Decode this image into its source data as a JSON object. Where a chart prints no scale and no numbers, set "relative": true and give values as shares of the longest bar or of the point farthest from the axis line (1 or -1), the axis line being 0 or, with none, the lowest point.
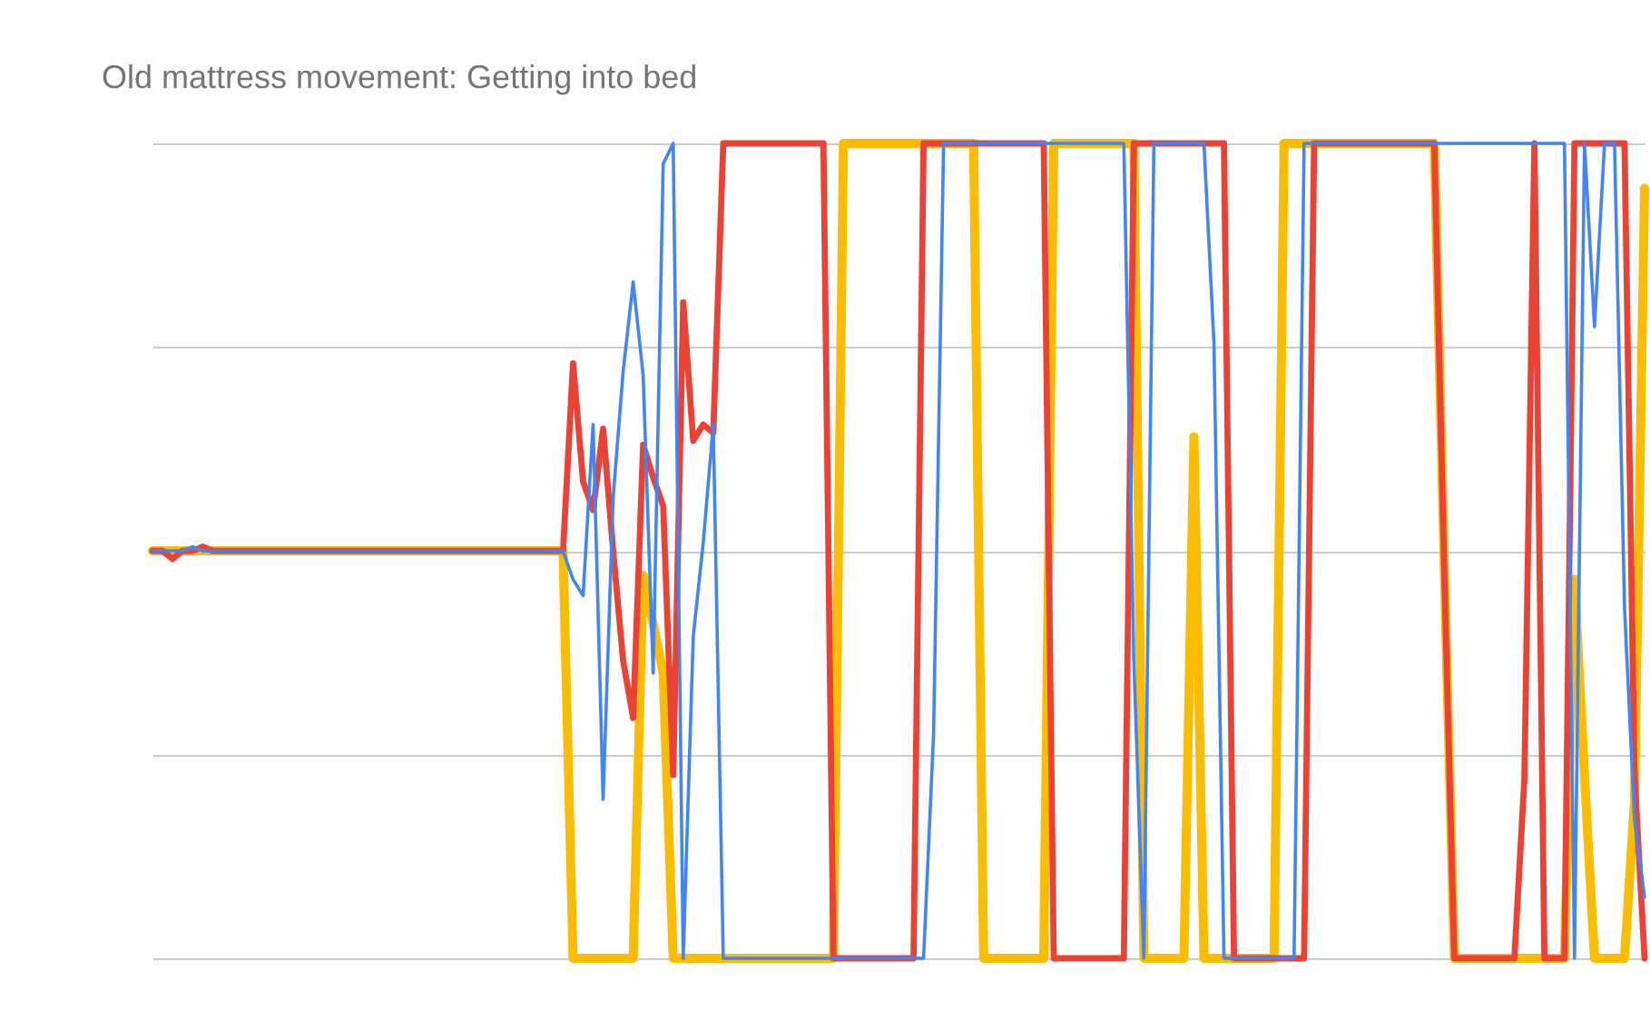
{
  "chart_data": {
    "type": "line",
    "title": "Old mattress movement: Getting into bed",
    "relative": true,
    "grid": "y",
    "marker": "none",
    "line_style": "solid",
    "categories": [
      null,
      null,
      null,
      null,
      null,
      null,
      null,
      null,
      null,
      null,
      null,
      null,
      null,
      null,
      null,
      null,
      null,
      null,
      null,
      null,
      null,
      null,
      null,
      null,
      null,
      null,
      null,
      null,
      null,
      null,
      null,
      null,
      null,
      null,
      null,
      null,
      null,
      null,
      null,
      null,
      null,
      null,
      null,
      null,
      null,
      null,
      null,
      null,
      null,
      null,
      null,
      null,
      null,
      null,
      null,
      null,
      null,
      null,
      null,
      null,
      null,
      null,
      null,
      null,
      null,
      null,
      null,
      null,
      null,
      null,
      null,
      null,
      null,
      null,
      null,
      null,
      null,
      null,
      null,
      null,
      null,
      null,
      null,
      null,
      null,
      null,
      null,
      null,
      null,
      null,
      null,
      null,
      null,
      null,
      null,
      null,
      null,
      null,
      null,
      null,
      null,
      null,
      null,
      null,
      null,
      null,
      null,
      null,
      null,
      null,
      null,
      null,
      null,
      null,
      null,
      null,
      null,
      null,
      null,
      null,
      null,
      null,
      null,
      null,
      null,
      null,
      null,
      null,
      null,
      null,
      null,
      null,
      null,
      null,
      null,
      null,
      null,
      null,
      null,
      null,
      null,
      null,
      null,
      null,
      null,
      null,
      null,
      null,
      null,
      null
    ],
    "series": [
      {
        "color": "#4285f4",
        "values": [
          0,
          0,
          0,
          0,
          0.01,
          0,
          0,
          0,
          0,
          0,
          0,
          0,
          0,
          0,
          0,
          0,
          0,
          0,
          0,
          0,
          0,
          0,
          0,
          0,
          0,
          0,
          0,
          0,
          0,
          0,
          0,
          0,
          0,
          0,
          0,
          0,
          0,
          0,
          0,
          0,
          0,
          0,
          -0.07,
          -0.11,
          0.31,
          -0.61,
          0.13,
          0.44,
          0.66,
          0.43,
          -0.3,
          0.95,
          1,
          -1,
          -0.21,
          0.02,
          0.31,
          -1,
          -1,
          -1,
          -1,
          -1,
          -1,
          -1,
          -1,
          -1,
          -1,
          -1,
          -1,
          -1,
          -1,
          -1,
          -1,
          -1,
          -1,
          -1,
          -1,
          -1,
          -0.45,
          1,
          1,
          1,
          1,
          1,
          1,
          1,
          1,
          1,
          1,
          1,
          1,
          1,
          1,
          1,
          1,
          1,
          1,
          1,
          -0.27,
          -1,
          1,
          1,
          1,
          1,
          1,
          1,
          0.51,
          -1,
          -1,
          -1,
          -1,
          -1,
          -1,
          -1,
          -1,
          1,
          1,
          1,
          1,
          1,
          1,
          1,
          1,
          1,
          1,
          1,
          1,
          1,
          1,
          1,
          1,
          1,
          1,
          1,
          1,
          1,
          1,
          1,
          1,
          1,
          1,
          1,
          -1,
          1,
          0.55,
          1,
          1,
          -0.14,
          -0.66,
          -0.85
        ]
      },
      {
        "color": "#ea4335",
        "values": [
          0,
          0,
          -0.02,
          0,
          0,
          0.01,
          0,
          0,
          0,
          0,
          0,
          0,
          0,
          0,
          0,
          0,
          0,
          0,
          0,
          0,
          0,
          0,
          0,
          0,
          0,
          0,
          0,
          0,
          0,
          0,
          0,
          0,
          0,
          0,
          0,
          0,
          0,
          0,
          0,
          0,
          0,
          0,
          0.46,
          0.17,
          0.1,
          0.3,
          0,
          -0.27,
          -0.41,
          0.26,
          0.18,
          0.11,
          -0.55,
          0.61,
          0.27,
          0.31,
          0.29,
          1,
          1,
          1,
          1,
          1,
          1,
          1,
          1,
          1,
          1,
          1,
          -1,
          -1,
          -1,
          -1,
          -1,
          -1,
          -1,
          -1,
          -1,
          1,
          1,
          1,
          1,
          1,
          1,
          1,
          1,
          1,
          1,
          1,
          1,
          1,
          -1,
          -1,
          -1,
          -1,
          -1,
          -1,
          -1,
          -1,
          1,
          1,
          1,
          1,
          1,
          1,
          1,
          1,
          1,
          1,
          -1,
          -1,
          -1,
          -1,
          -1,
          -1,
          -1,
          -1,
          1,
          1,
          1,
          1,
          1,
          1,
          1,
          1,
          1,
          1,
          1,
          1,
          1,
          -0.05,
          -1,
          -1,
          -1,
          -1,
          -1,
          -1,
          -1,
          -0.56,
          1,
          -1,
          -1,
          -1,
          1,
          1,
          1,
          1,
          1,
          1,
          -0.55,
          -1
        ]
      },
      {
        "color": "#fbbc04",
        "values": [
          0,
          0,
          0,
          0,
          0,
          0,
          0,
          0,
          0,
          0,
          0,
          0,
          0,
          0,
          0,
          0,
          0,
          0,
          0,
          0,
          0,
          0,
          0,
          0,
          0,
          0,
          0,
          0,
          0,
          0,
          0,
          0,
          0,
          0,
          0,
          0,
          0,
          0,
          0,
          0,
          0,
          0,
          -1,
          -1,
          -1,
          -1,
          -1,
          -1,
          -1,
          -0.06,
          -0.18,
          -0.3,
          -1,
          -1,
          -1,
          -1,
          -1,
          -1,
          -1,
          -1,
          -1,
          -1,
          -1,
          -1,
          -1,
          -1,
          -1,
          -1,
          -1,
          1,
          1,
          1,
          1,
          1,
          1,
          1,
          1,
          1,
          1,
          1,
          1,
          1,
          1,
          -1,
          -1,
          -1,
          -1,
          -1,
          -1,
          -1,
          1,
          1,
          1,
          1,
          1,
          1,
          1,
          1,
          1,
          -1,
          -1,
          -1,
          -1,
          -1,
          0.28,
          -1,
          -1,
          -1,
          -1,
          -1,
          -1,
          -1,
          -1,
          1,
          1,
          1,
          1,
          1,
          1,
          1,
          1,
          1,
          1,
          1,
          1,
          1,
          1,
          1,
          1,
          -0.04,
          -1,
          -1,
          -1,
          -1,
          -1,
          -1,
          -1,
          -1,
          -1,
          -1,
          -1,
          -1,
          -0.07,
          -0.55,
          -1,
          -1,
          -1,
          -1,
          -0.61,
          0.89
        ]
      }
    ]
  }
}
